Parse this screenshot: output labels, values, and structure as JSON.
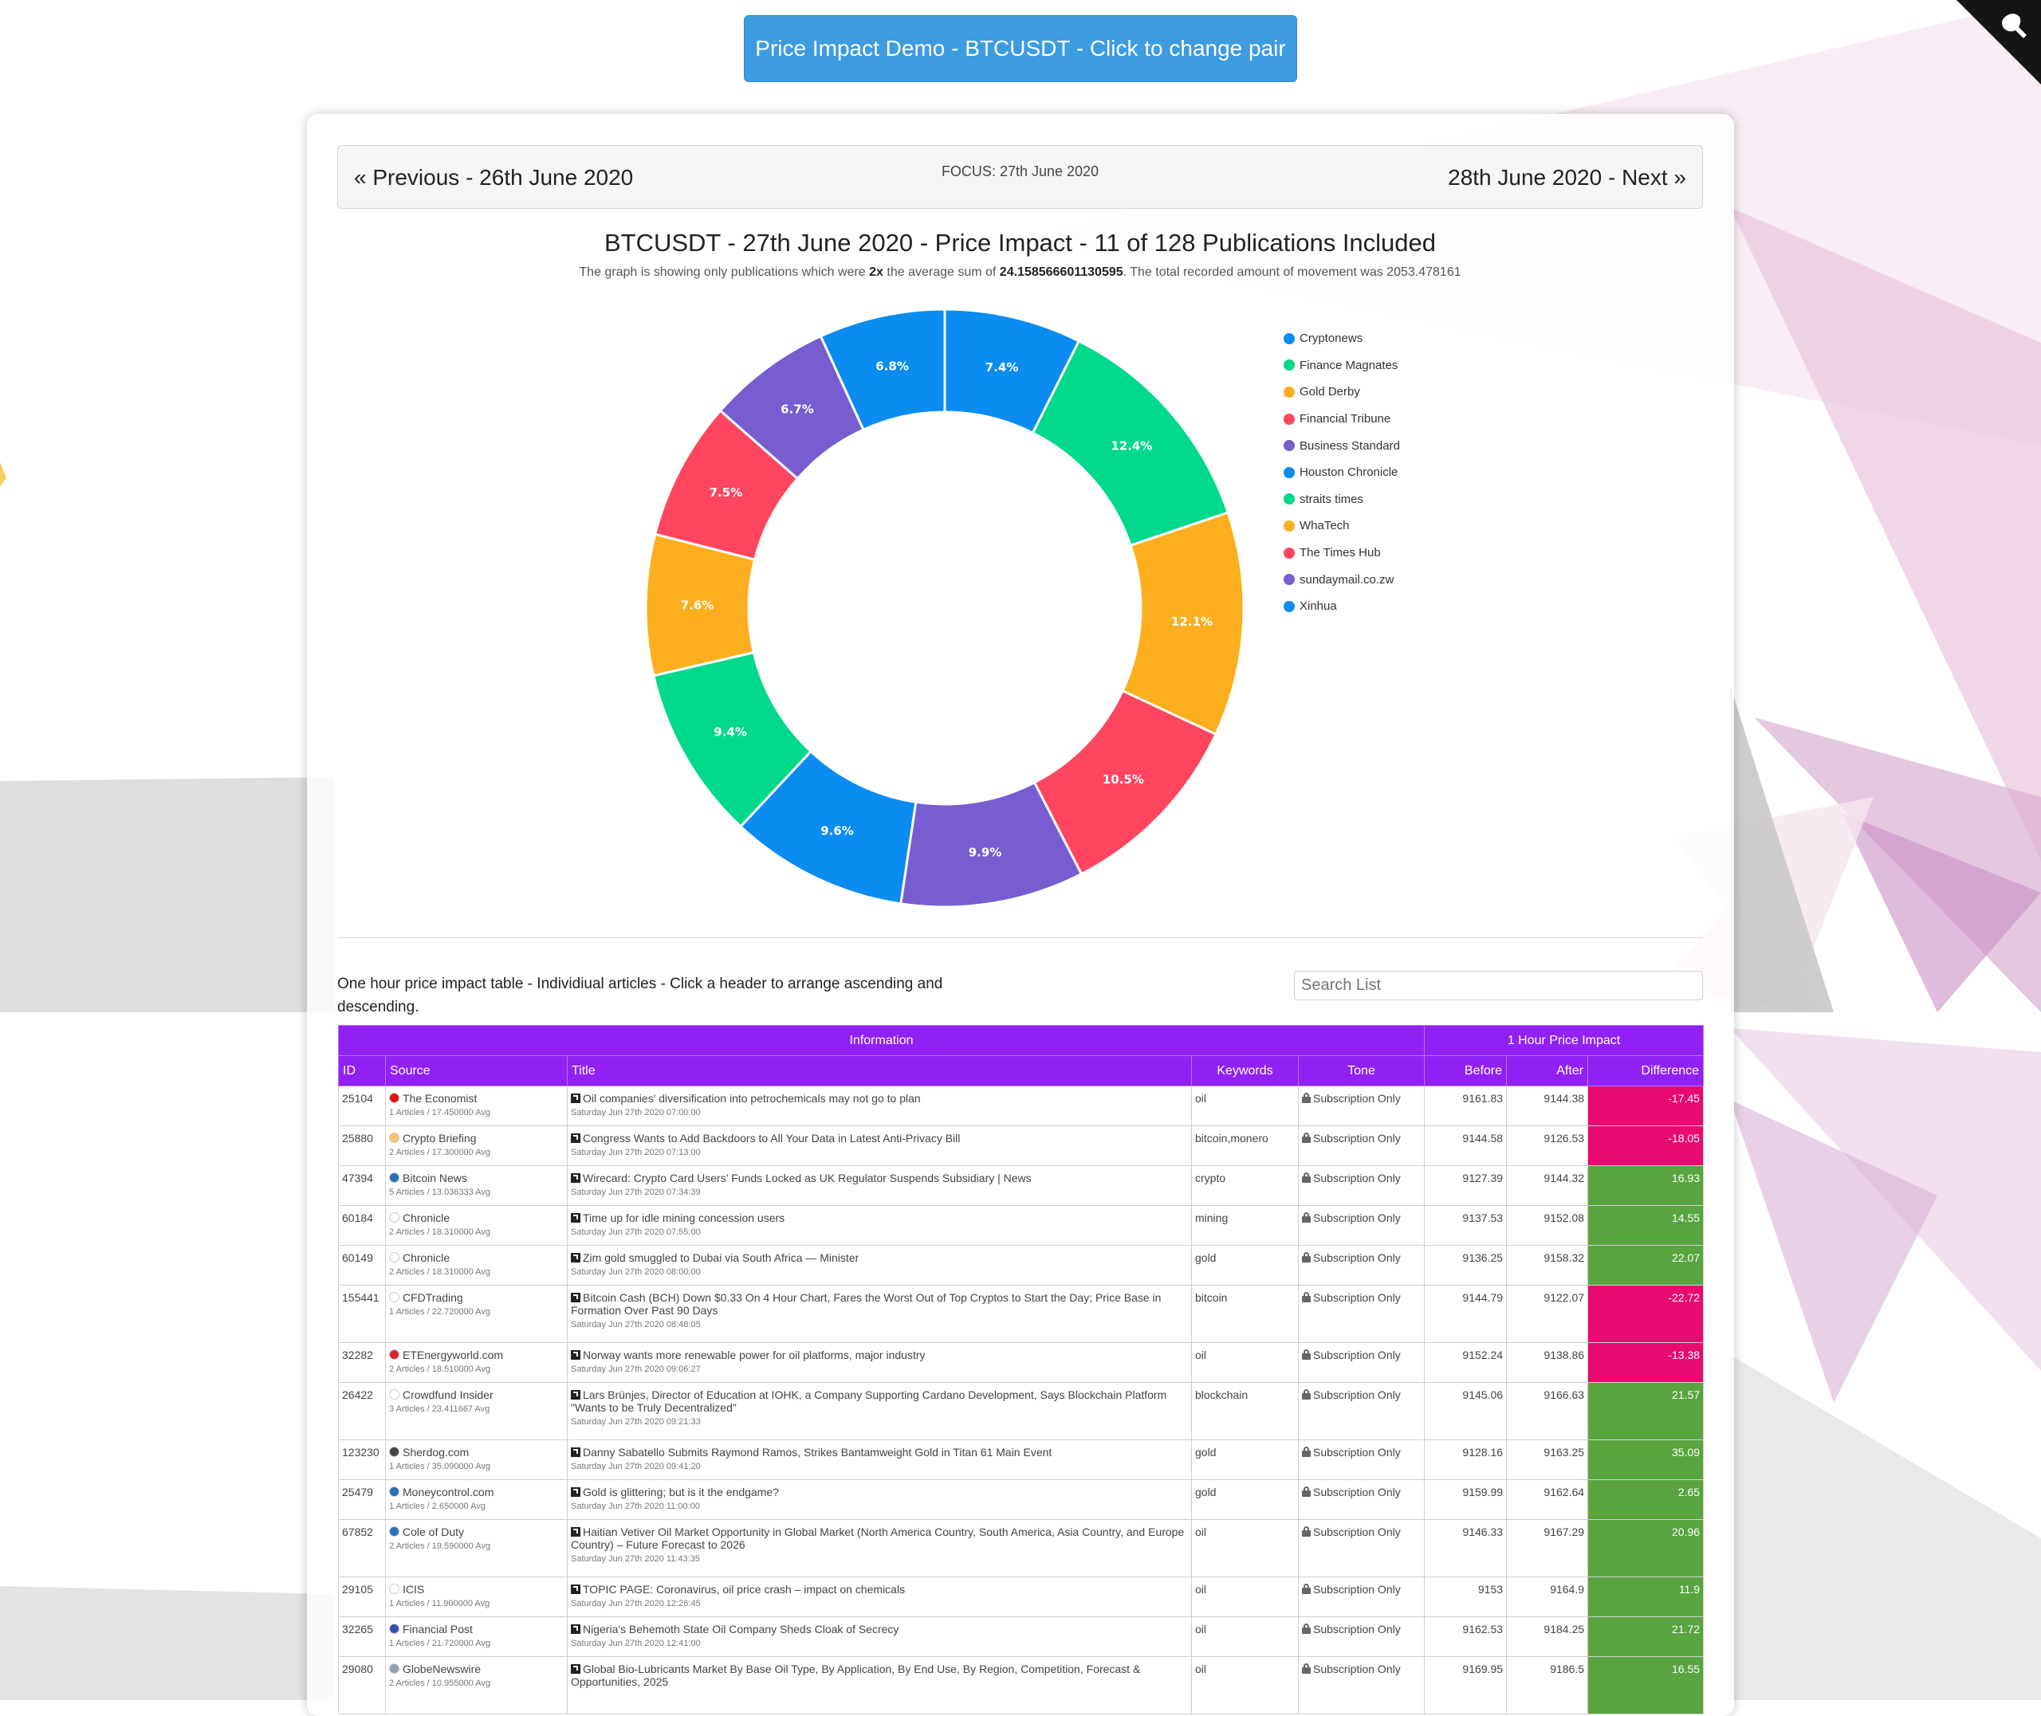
{
  "top_button": "Price Impact Demo - BTCUSDT - Click to change pair",
  "nav": {
    "prev": "« Previous - 26th June 2020",
    "focus": "FOCUS: 27th June 2020",
    "next": "28th June 2020 - Next »"
  },
  "chart_title": "BTCUSDT - 27th June 2020 - Price Impact - 11 of 128 Publications Included",
  "chart_sub": {
    "p1": "The graph is showing only publications which were ",
    "multiplier": "2x",
    "p2": " the average sum of ",
    "avg": "24.158566601130595",
    "p3": ". The total recorded amount of movement was 2053.478161"
  },
  "chart_data": {
    "type": "pie",
    "donut": true,
    "labels": [
      "Cryptonews",
      "Finance Magnates",
      "Gold Derby",
      "Financial Tribune",
      "Business Standard",
      "Houston Chronicle",
      "straits times",
      "WhaTech",
      "The Times Hub",
      "sundaymail.co.zw",
      "Xinhua"
    ],
    "values": [
      7.4,
      12.4,
      12.1,
      10.5,
      9.9,
      9.6,
      9.4,
      7.6,
      7.5,
      6.7,
      6.8
    ],
    "value_labels": [
      "7.4%",
      "12.4%",
      "12.1%",
      "10.5%",
      "9.9%",
      "9.6%",
      "9.4%",
      "7.6%",
      "7.5%",
      "6.7%",
      "6.8%"
    ],
    "colors": [
      "#0a8cf0",
      "#00d98b",
      "#fcae1e",
      "#ff4560",
      "#775dd0",
      "#0a8cf0",
      "#00d98b",
      "#fcae1e",
      "#ff4560",
      "#775dd0",
      "#0a8cf0"
    ],
    "legend_position": "right"
  },
  "table_caption": "One hour price impact table - Individiual articles - Click a header to arrange ascending and descending.",
  "search_placeholder": "Search List",
  "table": {
    "group_info": "Information",
    "group_impact": "1 Hour Price Impact",
    "headers": {
      "id": "ID",
      "source": "Source",
      "title": "Title",
      "keywords": "Keywords",
      "tone": "Tone",
      "before": "Before",
      "after": "After",
      "difference": "Difference"
    },
    "rows": [
      {
        "id": "25104",
        "source": "The Economist",
        "source_meta": "1 Articles / 17.450000 Avg",
        "icon_color": "#e3120b",
        "title": "Oil companies' diversification into petrochemicals may not go to plan",
        "date": "Saturday Jun 27th 2020 07:00:00",
        "keywords": "oil",
        "tone": "Subscription Only",
        "before": "9161.83",
        "after": "9144.38",
        "difference": "-17.45",
        "sign": "neg"
      },
      {
        "id": "25880",
        "source": "Crypto Briefing",
        "source_meta": "2 Articles / 17.300000 Avg",
        "icon_color": "#f5c46b",
        "title": "Congress Wants to Add Backdoors to All Your Data in Latest Anti-Privacy Bill",
        "date": "Saturday Jun 27th 2020 07:13:00",
        "keywords": "bitcoin,monero",
        "tone": "Subscription Only",
        "before": "9144.58",
        "after": "9126.53",
        "difference": "-18.05",
        "sign": "neg"
      },
      {
        "id": "47394",
        "source": "Bitcoin News",
        "source_meta": "5 Articles / 13.036333 Avg",
        "icon_color": "#2a6fb8",
        "title": "Wirecard: Crypto Card Users' Funds Locked as UK Regulator Suspends Subsidiary | News",
        "date": "Saturday Jun 27th 2020 07:34:39",
        "keywords": "crypto",
        "tone": "Subscription Only",
        "before": "9127.39",
        "after": "9144.32",
        "difference": "16.93",
        "sign": "pos"
      },
      {
        "id": "60184",
        "source": "Chronicle",
        "source_meta": "2 Articles / 18.310000 Avg",
        "icon_color": "#ffffff",
        "title": "Time up for idle mining concession users",
        "date": "Saturday Jun 27th 2020 07:55:00",
        "keywords": "mining",
        "tone": "Subscription Only",
        "before": "9137.53",
        "after": "9152.08",
        "difference": "14.55",
        "sign": "pos"
      },
      {
        "id": "60149",
        "source": "Chronicle",
        "source_meta": "2 Articles / 18.310000 Avg",
        "icon_color": "#ffffff",
        "title": "Zim gold smuggled to Dubai via South Africa — Minister",
        "date": "Saturday Jun 27th 2020 08:00:00",
        "keywords": "gold",
        "tone": "Subscription Only",
        "before": "9136.25",
        "after": "9158.32",
        "difference": "22.07",
        "sign": "pos"
      },
      {
        "id": "155441",
        "source": "CFDTrading",
        "source_meta": "1 Articles / 22.720000 Avg",
        "icon_color": "#ffffff",
        "title": "Bitcoin Cash (BCH) Down $0.33 On 4 Hour Chart, Fares the Worst Out of Top Cryptos to Start the Day; Price Base in Formation Over Past 90 Days",
        "date": "Saturday Jun 27th 2020 08:48:05",
        "keywords": "bitcoin",
        "tone": "Subscription Only",
        "before": "9144.79",
        "after": "9122.07",
        "difference": "-22.72",
        "sign": "neg"
      },
      {
        "id": "32282",
        "source": "ETEnergyworld.com",
        "source_meta": "2 Articles / 18.510000 Avg",
        "icon_color": "#d6262b",
        "title": "Norway wants more renewable power for oil platforms, major industry",
        "date": "Saturday Jun 27th 2020 09:06:27",
        "keywords": "oil",
        "tone": "Subscription Only",
        "before": "9152.24",
        "after": "9138.86",
        "difference": "-13.38",
        "sign": "neg"
      },
      {
        "id": "26422",
        "source": "Crowdfund Insider",
        "source_meta": "3 Articles / 23.411667 Avg",
        "icon_color": "#ffffff",
        "title": "Lars Brünjes, Director of Education at IOHK, a Company Supporting Cardano Development, Says Blockchain Platform \"Wants to be Truly Decentralized\"",
        "date": "Saturday Jun 27th 2020 09:21:33",
        "keywords": "blockchain",
        "tone": "Subscription Only",
        "before": "9145.06",
        "after": "9166.63",
        "difference": "21.57",
        "sign": "pos"
      },
      {
        "id": "123230",
        "source": "Sherdog.com",
        "source_meta": "1 Articles / 35.090000 Avg",
        "icon_color": "#444444",
        "title": "Danny Sabatello Submits Raymond Ramos, Strikes Bantamweight Gold in Titan 61 Main Event",
        "date": "Saturday Jun 27th 2020 09:41:20",
        "keywords": "gold",
        "tone": "Subscription Only",
        "before": "9128.16",
        "after": "9163.25",
        "difference": "35.09",
        "sign": "pos"
      },
      {
        "id": "25479",
        "source": "Moneycontrol.com",
        "source_meta": "1 Articles / 2.650000 Avg",
        "icon_color": "#2a6fb8",
        "title": "Gold is glittering; but is it the endgame?",
        "date": "Saturday Jun 27th 2020 11:00:00",
        "keywords": "gold",
        "tone": "Subscription Only",
        "before": "9159.99",
        "after": "9162.64",
        "difference": "2.65",
        "sign": "pos"
      },
      {
        "id": "67852",
        "source": "Cole of Duty",
        "source_meta": "2 Articles / 19.590000 Avg",
        "icon_color": "#2a6fb8",
        "title": "Haitian Vetiver Oil Market Opportunity in Global Market (North America Country, South America, Asia Country, and Europe Country) – Future Forecast to 2026",
        "date": "Saturday Jun 27th 2020 11:43:35",
        "keywords": "oil",
        "tone": "Subscription Only",
        "before": "9146.33",
        "after": "9167.29",
        "difference": "20.96",
        "sign": "pos"
      },
      {
        "id": "29105",
        "source": "ICIS",
        "source_meta": "1 Articles / 11.900000 Avg",
        "icon_color": "#ffffff",
        "title": "TOPIC PAGE: Coronavirus, oil price crash – impact on chemicals",
        "date": "Saturday Jun 27th 2020 12:26:45",
        "keywords": "oil",
        "tone": "Subscription Only",
        "before": "9153",
        "after": "9164.9",
        "difference": "11.9",
        "sign": "pos"
      },
      {
        "id": "32265",
        "source": "Financial Post",
        "source_meta": "1 Articles / 21.720000 Avg",
        "icon_color": "#3b4fb8",
        "title": "Nigeria's Behemoth State Oil Company Sheds Cloak of Secrecy",
        "date": "Saturday Jun 27th 2020 12:41:00",
        "keywords": "oil",
        "tone": "Subscription Only",
        "before": "9162.53",
        "after": "9184.25",
        "difference": "21.72",
        "sign": "pos"
      },
      {
        "id": "29080",
        "source": "GlobeNewswire",
        "source_meta": "2 Articles / 10.955000 Avg",
        "icon_color": "#8aa0b8",
        "title": "Global Bio-Lubricants Market By Base Oil Type, By Application, By End Use, By Region, Competition, Forecast & Opportunities, 2025",
        "date": "",
        "keywords": "oil",
        "tone": "Subscription Only",
        "before": "9169.95",
        "after": "9186.5",
        "difference": "16.55",
        "sign": "pos"
      }
    ]
  }
}
